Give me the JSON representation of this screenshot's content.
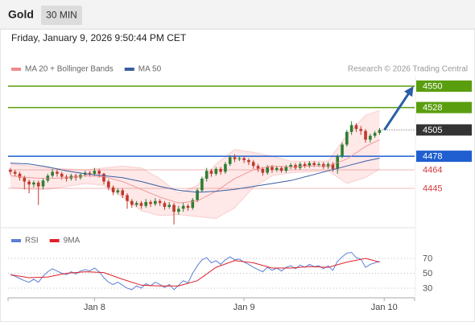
{
  "header": {
    "symbol": "Gold",
    "interval": "30 MIN",
    "datetime": "Friday, January 9, 2026 9:50:44 PM CET",
    "credit": "Research © 2026 Trading Central"
  },
  "chart_data": [
    {
      "type": "candlestick",
      "up_color": "#2f7d32",
      "down_color": "#c0392b",
      "candles": {
        "open": [
          4464,
          4462,
          4460,
          4456,
          4452,
          4449,
          4451,
          4447,
          4453,
          4458,
          4462,
          4460,
          4457,
          4455,
          4458,
          4456,
          4459,
          4461,
          4460,
          4463,
          4460,
          4452,
          4446,
          4441,
          4443,
          4438,
          4432,
          4428,
          4430,
          4427,
          4431,
          4429,
          4432,
          4430,
          4426,
          4428,
          4421,
          4424,
          4427,
          4425,
          4433,
          4443,
          4455,
          4463,
          4460,
          4465,
          4462,
          4470,
          4477,
          4475,
          4476,
          4474,
          4472,
          4468,
          4465,
          4461,
          4467,
          4464,
          4466,
          4463,
          4467,
          4469,
          4466,
          4470,
          4468,
          4471,
          4469,
          4470,
          4467,
          4470,
          4465,
          4478,
          4490,
          4503,
          4510,
          4506,
          4504,
          4495,
          4499,
          4502
        ],
        "high": [
          4466,
          4464,
          4462,
          4458,
          4454,
          4453,
          4453,
          4455,
          4460,
          4465,
          4464,
          4462,
          4459,
          4460,
          4460,
          4461,
          4463,
          4463,
          4466,
          4465,
          4461,
          4454,
          4448,
          4445,
          4445,
          4440,
          4434,
          4432,
          4432,
          4434,
          4433,
          4435,
          4434,
          4432,
          4431,
          4430,
          4427,
          4430,
          4429,
          4435,
          4445,
          4457,
          4466,
          4465,
          4467,
          4467,
          4472,
          4479,
          4480,
          4478,
          4478,
          4476,
          4474,
          4470,
          4467,
          4469,
          4469,
          4468,
          4468,
          4469,
          4471,
          4471,
          4472,
          4472,
          4473,
          4473,
          4472,
          4472,
          4472,
          4472,
          4480,
          4492,
          4505,
          4514,
          4512,
          4509,
          4506,
          4501,
          4504,
          4507
        ],
        "low": [
          4459,
          4457,
          4453,
          4444,
          4440,
          4446,
          4428,
          4444,
          4451,
          4456,
          4457,
          4454,
          4452,
          4453,
          4453,
          4454,
          4457,
          4457,
          4458,
          4456,
          4449,
          4443,
          4438,
          4439,
          4435,
          4424,
          4425,
          4426,
          4424,
          4425,
          4426,
          4427,
          4427,
          4423,
          4424,
          4408,
          4418,
          4421,
          4422,
          4423,
          4431,
          4441,
          4452,
          4457,
          4458,
          4459,
          4460,
          4468,
          4472,
          4473,
          4471,
          4469,
          4465,
          4462,
          4458,
          4459,
          4461,
          4462,
          4461,
          4461,
          4465,
          4464,
          4464,
          4466,
          4466,
          4467,
          4467,
          4465,
          4465,
          4462,
          4460,
          4476,
          4488,
          4500,
          4503,
          4500,
          4492,
          4492,
          4497,
          4500
        ],
        "close": [
          4462,
          4460,
          4456,
          4452,
          4449,
          4451,
          4447,
          4453,
          4458,
          4462,
          4460,
          4457,
          4455,
          4458,
          4456,
          4459,
          4461,
          4460,
          4463,
          4460,
          4452,
          4446,
          4441,
          4443,
          4438,
          4432,
          4428,
          4430,
          4427,
          4431,
          4429,
          4432,
          4430,
          4426,
          4428,
          4421,
          4424,
          4427,
          4425,
          4433,
          4443,
          4455,
          4463,
          4460,
          4465,
          4462,
          4470,
          4477,
          4475,
          4476,
          4474,
          4472,
          4468,
          4465,
          4461,
          4467,
          4464,
          4466,
          4463,
          4467,
          4469,
          4466,
          4470,
          4468,
          4471,
          4469,
          4470,
          4467,
          4470,
          4465,
          4478,
          4490,
          4503,
          4510,
          4506,
          4504,
          4495,
          4499,
          4502,
          4505
        ]
      },
      "series": [
        {
          "name": "MA 20 + Bollinger Bands",
          "color": "#f08a8a",
          "x": [
            0,
            4,
            8,
            12,
            16,
            20,
            24,
            28,
            32,
            36,
            40,
            44,
            48,
            52,
            56,
            60,
            64,
            68,
            72,
            76,
            79
          ],
          "values": [
            4458,
            4456,
            4455,
            4456,
            4458,
            4457,
            4452,
            4444,
            4436,
            4430,
            4432,
            4442,
            4455,
            4464,
            4468,
            4467,
            4468,
            4468,
            4475,
            4488,
            4495
          ],
          "upper": [
            4470,
            4468,
            4466,
            4465,
            4464,
            4466,
            4468,
            4466,
            4455,
            4440,
            4448,
            4470,
            4485,
            4482,
            4478,
            4473,
            4473,
            4473,
            4500,
            4520,
            4525
          ],
          "lower": [
            4446,
            4444,
            4444,
            4447,
            4450,
            4448,
            4436,
            4422,
            4417,
            4418,
            4416,
            4414,
            4425,
            4446,
            4458,
            4461,
            4462,
            4463,
            4450,
            4456,
            4465
          ]
        },
        {
          "name": "MA 50",
          "color": "#3a5da0",
          "x": [
            0,
            4,
            8,
            12,
            16,
            20,
            24,
            28,
            32,
            36,
            40,
            44,
            48,
            52,
            56,
            60,
            64,
            68,
            72,
            76,
            79
          ],
          "values": [
            4471,
            4470,
            4467,
            4463,
            4460,
            4458,
            4456,
            4452,
            4447,
            4443,
            4441,
            4442,
            4444,
            4447,
            4450,
            4453,
            4458,
            4463,
            4468,
            4473,
            4476
          ]
        }
      ],
      "levels": [
        {
          "value": 4550,
          "color": "#5a9e0f",
          "box": true
        },
        {
          "value": 4528,
          "color": "#5a9e0f",
          "box": true
        },
        {
          "value": 4505,
          "color": "#333333",
          "box": true,
          "dotted": true
        },
        {
          "value": 4478,
          "color": "#1f5fd0",
          "box": true
        },
        {
          "value": 4464,
          "color": "#d63a3a",
          "box": false
        },
        {
          "value": 4445,
          "color": "#d63a3a",
          "box": false
        }
      ],
      "xlim": [
        -0.5,
        86.5
      ],
      "ylim": [
        4405,
        4560
      ]
    },
    {
      "type": "line",
      "series": [
        {
          "name": "RSI",
          "color": "#5b7fd6",
          "values": [
            48,
            46,
            43,
            40,
            38,
            42,
            38,
            46,
            52,
            56,
            53,
            50,
            48,
            52,
            49,
            53,
            55,
            53,
            57,
            52,
            44,
            38,
            35,
            38,
            34,
            30,
            28,
            33,
            30,
            36,
            33,
            38,
            35,
            31,
            35,
            28,
            34,
            40,
            37,
            50,
            60,
            68,
            71,
            64,
            67,
            62,
            68,
            72,
            68,
            69,
            65,
            62,
            58,
            55,
            52,
            58,
            54,
            57,
            53,
            58,
            60,
            56,
            61,
            58,
            62,
            59,
            60,
            56,
            60,
            54,
            66,
            72,
            77,
            78,
            71,
            69,
            58,
            62,
            64,
            66
          ]
        },
        {
          "name": "9MA",
          "color": "#e0202a",
          "x": [
            0,
            4,
            8,
            12,
            16,
            20,
            24,
            28,
            32,
            36,
            40,
            44,
            48,
            52,
            56,
            60,
            64,
            68,
            72,
            76,
            79
          ],
          "values": [
            48,
            44,
            45,
            50,
            52,
            51,
            42,
            34,
            33,
            33,
            40,
            58,
            67,
            64,
            57,
            57,
            59,
            58,
            65,
            70,
            65
          ]
        }
      ],
      "xlim": [
        -0.5,
        86.5
      ],
      "ylim": [
        20,
        85
      ],
      "yticks": [
        30,
        50,
        70
      ],
      "grid": true,
      "xticks": [
        {
          "value": 18,
          "label": "Jan 8"
        },
        {
          "value": 50,
          "label": "Jan 9"
        },
        {
          "value": 80,
          "label": "Jan 10"
        }
      ]
    }
  ]
}
